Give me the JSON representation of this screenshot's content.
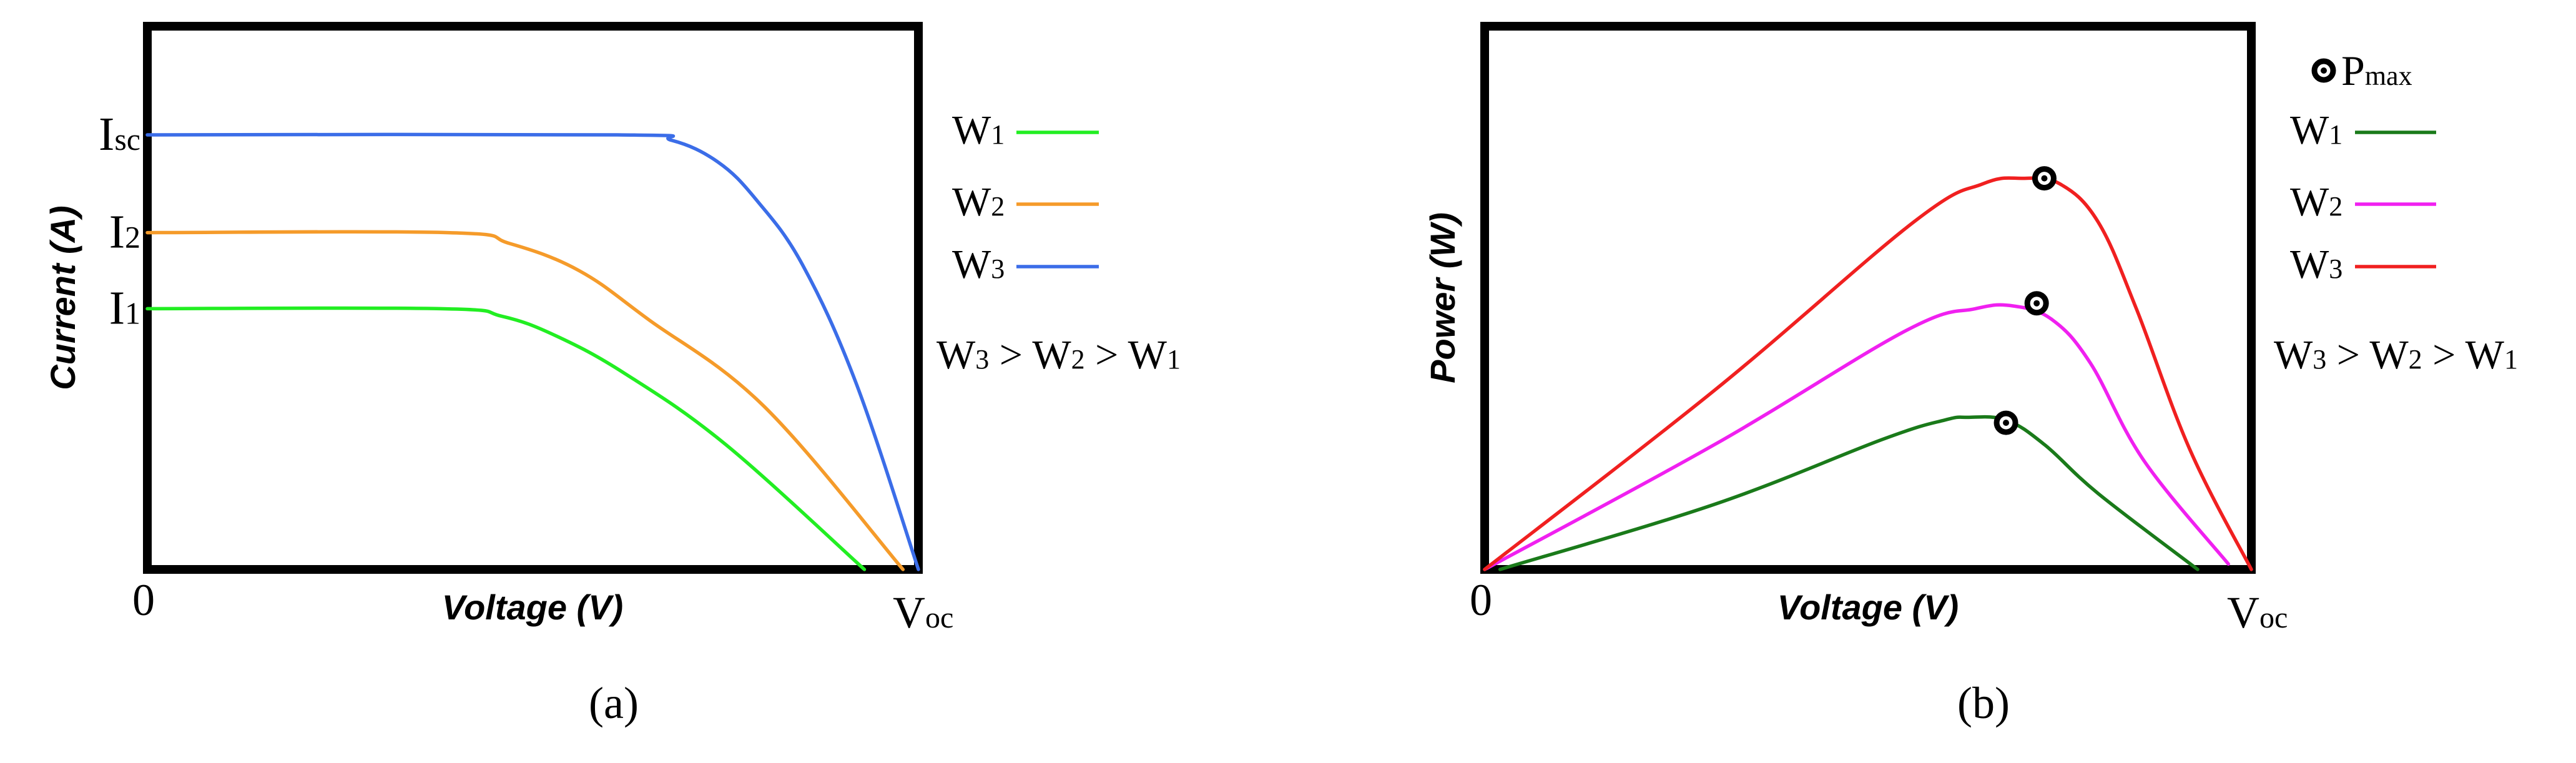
{
  "chart_data": [
    {
      "type": "line",
      "panel_label": "(a)",
      "xlabel": "Voltage (V)",
      "ylabel": "Current (A)",
      "x_tick_labels": {
        "origin": "0",
        "voc": {
          "main": "V",
          "sub": "oc"
        }
      },
      "y_tick_labels": [
        {
          "main": "I",
          "sub": "sc",
          "y": 0.8
        },
        {
          "main": "I",
          "sub": "2",
          "y": 0.62
        },
        {
          "main": "I",
          "sub": "1",
          "y": 0.48
        }
      ],
      "xlim": [
        0,
        1
      ],
      "ylim": [
        0,
        1
      ],
      "annotation": {
        "parts": [
          "W",
          "3",
          " > W",
          "2",
          " > W",
          "1"
        ]
      },
      "series": [
        {
          "name": "W",
          "sub": "1",
          "color": "#22ee22",
          "x": [
            0,
            0.38,
            0.46,
            0.53,
            0.62,
            0.75,
            0.93
          ],
          "y": [
            0.48,
            0.48,
            0.466,
            0.43,
            0.36,
            0.23,
            0.0
          ]
        },
        {
          "name": "W",
          "sub": "2",
          "color": "#f59b2a",
          "x": [
            0,
            0.39,
            0.47,
            0.56,
            0.65,
            0.8,
            0.98
          ],
          "y": [
            0.62,
            0.62,
            0.6,
            0.55,
            0.46,
            0.3,
            0.0
          ]
        },
        {
          "name": "W",
          "sub": "3",
          "color": "#3b6de8",
          "x": [
            0,
            0.61,
            0.68,
            0.74,
            0.79,
            0.85,
            0.92,
            1.0
          ],
          "y": [
            0.8,
            0.8,
            0.79,
            0.75,
            0.68,
            0.56,
            0.34,
            0.0
          ]
        }
      ]
    },
    {
      "type": "line",
      "panel_label": "(b)",
      "xlabel": "Voltage (V)",
      "ylabel": "Power (W)",
      "x_tick_labels": {
        "origin": "0",
        "voc": {
          "main": "V",
          "sub": "oc"
        }
      },
      "xlim": [
        0,
        1
      ],
      "ylim": [
        0,
        1
      ],
      "legend_title": {
        "main": "P",
        "sub": "max"
      },
      "annotation": {
        "parts": [
          "W",
          "3",
          " > W",
          "2",
          " > W",
          "1"
        ]
      },
      "series": [
        {
          "name": "W",
          "sub": "1",
          "color": "#1a7a1a",
          "x": [
            0.02,
            0.3,
            0.52,
            0.6,
            0.63,
            0.68,
            0.73,
            0.8,
            0.93
          ],
          "y": [
            0.0,
            0.12,
            0.24,
            0.275,
            0.28,
            0.275,
            0.23,
            0.14,
            0.0
          ],
          "pmax": {
            "x": 0.68,
            "y": 0.27
          }
        },
        {
          "name": "W",
          "sub": "2",
          "color": "#f020f0",
          "x": [
            0,
            0.3,
            0.55,
            0.64,
            0.69,
            0.74,
            0.79,
            0.86,
            0.97
          ],
          "y": [
            0.0,
            0.23,
            0.44,
            0.48,
            0.485,
            0.46,
            0.38,
            0.2,
            0.01
          ],
          "pmax": {
            "x": 0.72,
            "y": 0.49
          }
        },
        {
          "name": "W",
          "sub": "3",
          "color": "#f02020",
          "x": [
            0,
            0.3,
            0.56,
            0.65,
            0.7,
            0.75,
            0.8,
            0.85,
            0.92,
            1.0
          ],
          "y": [
            0.0,
            0.33,
            0.64,
            0.71,
            0.72,
            0.71,
            0.64,
            0.48,
            0.22,
            0.0
          ],
          "pmax": {
            "x": 0.73,
            "y": 0.72
          }
        }
      ]
    }
  ]
}
